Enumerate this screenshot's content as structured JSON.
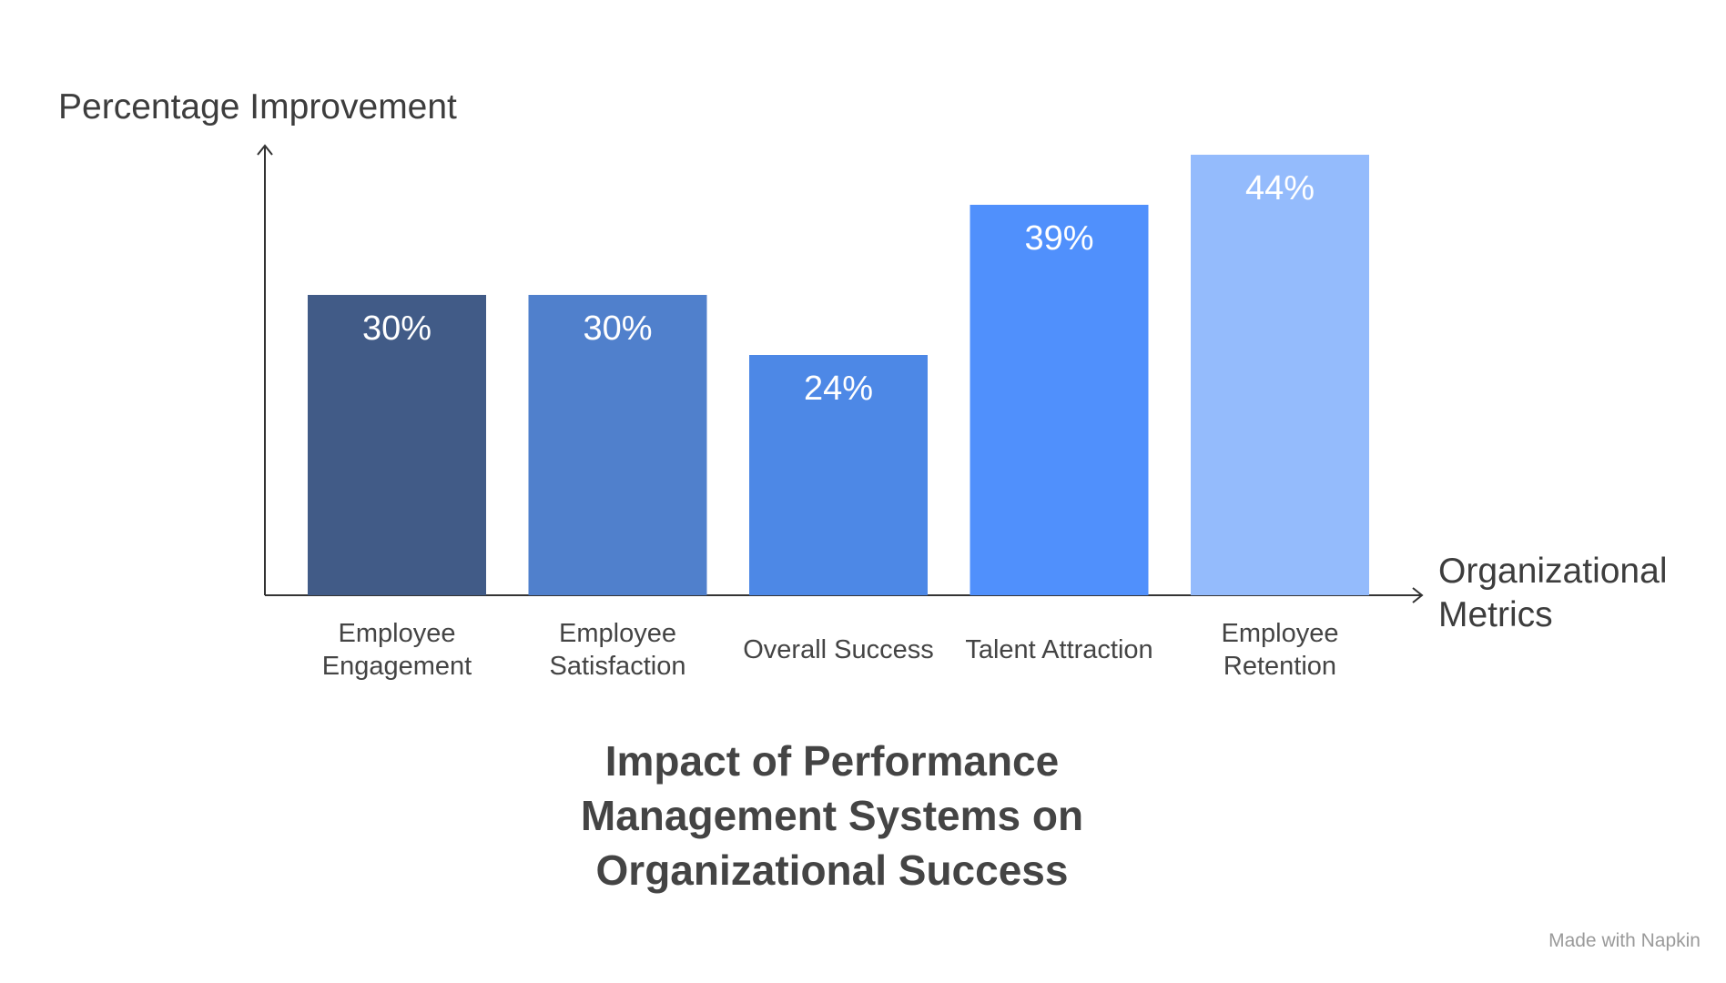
{
  "chart_data": {
    "type": "bar",
    "title": "Impact of Performance Management Systems on Organizational Success",
    "y_label": "Percentage Improvement",
    "x_label": "Organizational Metrics",
    "categories": [
      "Employee Engagement",
      "Employee Satisfaction",
      "Overall Success",
      "Talent Attraction",
      "Employee Retention"
    ],
    "values": [
      30,
      30,
      24,
      39,
      44
    ],
    "value_labels": [
      "30%",
      "30%",
      "24%",
      "39%",
      "44%"
    ],
    "colors": [
      "#415b87",
      "#5080cc",
      "#4d88e6",
      "#5090fc",
      "#94bbfc"
    ],
    "ylim": [
      0,
      45
    ],
    "watermark": "Made with Napkin"
  }
}
